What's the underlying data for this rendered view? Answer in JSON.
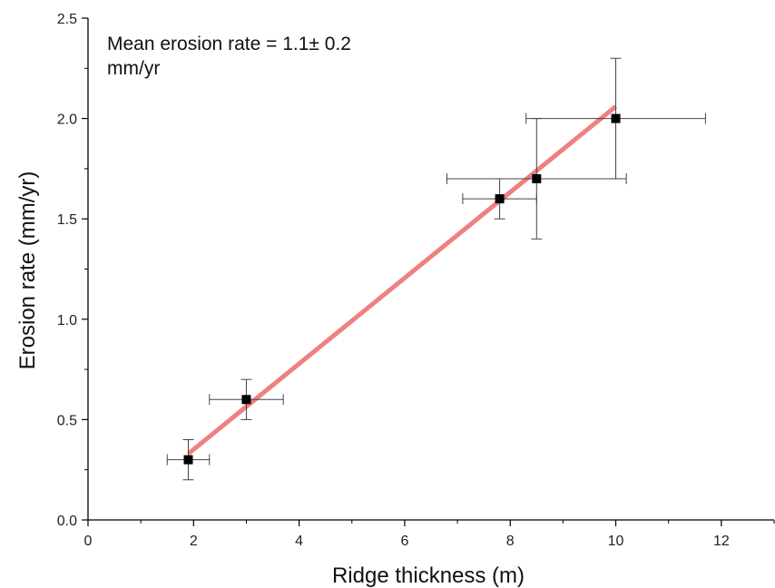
{
  "chart_data": {
    "type": "scatter",
    "title": "",
    "xlabel": "Ridge thickness (m)",
    "ylabel": "Erosion rate (mm/yr)",
    "xlim": [
      0,
      13
    ],
    "ylim": [
      0,
      2.5
    ],
    "xticks": [
      0,
      2,
      4,
      6,
      8,
      10,
      12
    ],
    "xtick_labels": [
      "0",
      "2",
      "4",
      "6",
      "8",
      "10",
      "12"
    ],
    "yticks": [
      0.0,
      0.5,
      1.0,
      1.5,
      2.0,
      2.5
    ],
    "ytick_labels": [
      "0.0",
      "0.5",
      "1.0",
      "1.5",
      "2.0",
      "2.5"
    ],
    "grid": false,
    "annotation_lines": [
      "Mean erosion rate = 1.1± 0.2",
      "mm/yr"
    ],
    "points": [
      {
        "x": 1.9,
        "y": 0.3,
        "xerr": 0.4,
        "yerr": 0.1
      },
      {
        "x": 3.0,
        "y": 0.6,
        "xerr": 0.7,
        "yerr": 0.1
      },
      {
        "x": 7.8,
        "y": 1.6,
        "xerr": 0.7,
        "yerr": 0.1
      },
      {
        "x": 8.5,
        "y": 1.7,
        "xerr": 1.7,
        "yerr": 0.3
      },
      {
        "x": 10.0,
        "y": 2.0,
        "xerr": 1.7,
        "yerr": 0.3
      }
    ],
    "fit_line": {
      "x": [
        1.9,
        10.0
      ],
      "y": [
        0.33,
        2.06
      ]
    },
    "colors": {
      "fit_line": "#f08080",
      "markers": "#000000",
      "error_bars": "#444444",
      "axes": "#000000"
    }
  }
}
